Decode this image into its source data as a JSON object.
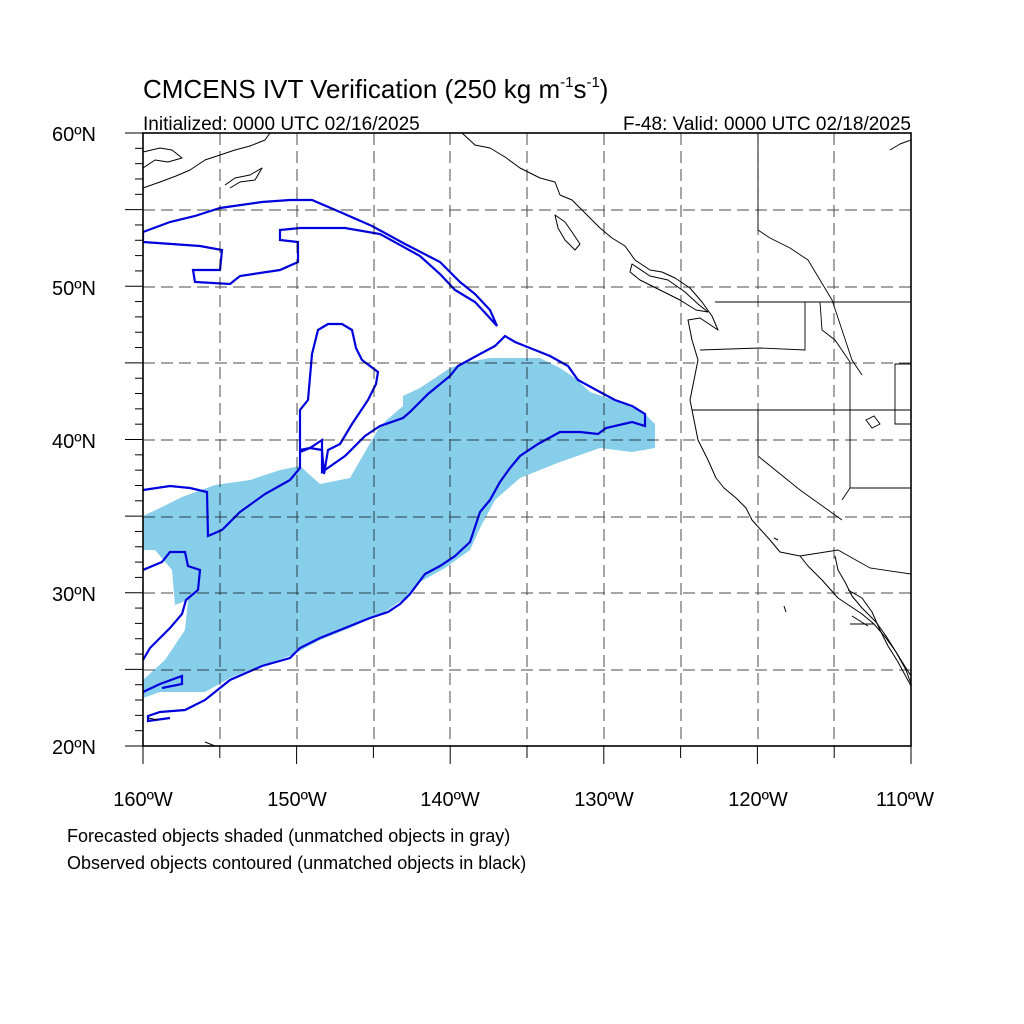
{
  "title": {
    "main": "CMCENS IVT Verification (250 kg m",
    "sup1": "-1",
    "mid": "s",
    "sup2": "-1",
    "end": ")"
  },
  "subtitle_left": "Initialized: 0000 UTC 02/16/2025",
  "subtitle_right": "F-48: Valid: 0000 UTC 02/18/2025",
  "lat_labels": [
    "60ºN",
    "50ºN",
    "40ºN",
    "30ºN",
    "20ºN"
  ],
  "lon_labels": [
    "160ºW",
    "150ºW",
    "140ºW",
    "130ºW",
    "120ºW",
    "110ºW"
  ],
  "footnotes": [
    "Forecasted objects shaded (unmatched objects in gray)",
    "Observed objects contoured (unmatched objects in black)"
  ],
  "map": {
    "lon_range": [
      -160,
      -110
    ],
    "lat_range": [
      20,
      60
    ],
    "grid_spacing_deg": 5,
    "gridline_style": "dashed",
    "colors": {
      "forecast_fill": "#87CEEB",
      "observed_contour": "#0000DD",
      "coastline": "#000000",
      "grid": "#000000"
    }
  }
}
